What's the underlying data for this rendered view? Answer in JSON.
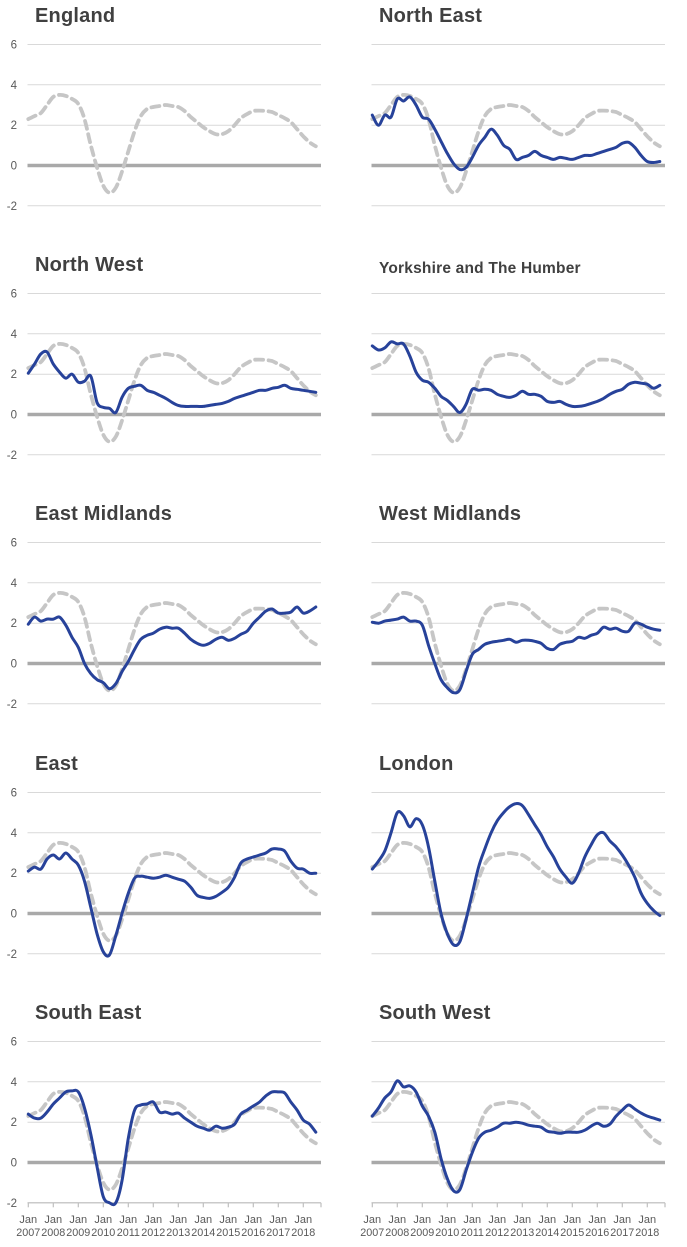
{
  "colors": {
    "region_line": "#27429a",
    "reference_line": "#c6c6c6",
    "zero_line": "#a9a9a9",
    "gridline": "#d9d9d9",
    "axis_line": "#bfbfbf",
    "title_text": "#404040",
    "tick_label": "#595959",
    "background": "#ffffff"
  },
  "chart_data": {
    "type": "line",
    "title": "",
    "xlabel": "",
    "ylabel": "",
    "ylim": [
      -2,
      6
    ],
    "y_ticks": [
      6,
      4,
      2,
      0,
      -2
    ],
    "x_tick_month_label": "Jan",
    "x_tick_years": [
      "2007",
      "2008",
      "2009",
      "2010",
      "2011",
      "2012",
      "2013",
      "2014",
      "2015",
      "2016",
      "2017",
      "2018"
    ],
    "grid": true,
    "legend_position": "none",
    "series_styles": {
      "region": "solid blue line",
      "england_reference": "dashed grey line shown on every panel"
    },
    "x": [
      2007,
      2007.25,
      2007.5,
      2007.75,
      2008,
      2008.25,
      2008.5,
      2008.75,
      2009,
      2009.25,
      2009.5,
      2009.75,
      2010,
      2010.25,
      2010.5,
      2010.75,
      2011,
      2011.25,
      2011.5,
      2011.75,
      2012,
      2012.25,
      2012.5,
      2012.75,
      2013,
      2013.25,
      2013.5,
      2013.75,
      2014,
      2014.25,
      2014.5,
      2014.75,
      2015,
      2015.25,
      2015.5,
      2015.75,
      2016,
      2016.25,
      2016.5,
      2016.75,
      2017,
      2017.25,
      2017.5,
      2017.75,
      2018,
      2018.25,
      2018.5
    ],
    "england_reference": [
      2.3,
      2.45,
      2.6,
      3.0,
      3.4,
      3.5,
      3.45,
      3.3,
      3.05,
      2.3,
      1.0,
      -0.1,
      -1.0,
      -1.35,
      -1.1,
      -0.3,
      0.7,
      1.7,
      2.45,
      2.8,
      2.9,
      2.95,
      3.0,
      2.95,
      2.9,
      2.7,
      2.4,
      2.15,
      1.9,
      1.7,
      1.55,
      1.55,
      1.7,
      2.0,
      2.35,
      2.55,
      2.7,
      2.72,
      2.7,
      2.65,
      2.5,
      2.35,
      2.15,
      1.8,
      1.45,
      1.15,
      0.95
    ],
    "charts": [
      {
        "title": "England",
        "small_title": false,
        "y_axis_labels": true,
        "x_axis_labels": false,
        "region_values": null
      },
      {
        "title": "North East",
        "small_title": false,
        "y_axis_labels": false,
        "x_axis_labels": false,
        "region_values": [
          2.5,
          2.0,
          2.5,
          2.4,
          3.3,
          3.2,
          3.4,
          3.0,
          2.4,
          2.3,
          1.8,
          1.2,
          0.6,
          0.1,
          -0.2,
          -0.1,
          0.4,
          1.0,
          1.4,
          1.8,
          1.5,
          1.0,
          0.8,
          0.3,
          0.4,
          0.5,
          0.7,
          0.5,
          0.4,
          0.3,
          0.4,
          0.35,
          0.3,
          0.4,
          0.5,
          0.5,
          0.6,
          0.7,
          0.8,
          0.9,
          1.1,
          1.15,
          0.9,
          0.5,
          0.2,
          0.15,
          0.2
        ]
      },
      {
        "title": "North West",
        "small_title": false,
        "y_axis_labels": true,
        "x_axis_labels": false,
        "region_values": [
          2.05,
          2.5,
          3.0,
          3.1,
          2.5,
          2.1,
          1.8,
          2.0,
          1.6,
          1.65,
          1.9,
          0.6,
          0.35,
          0.3,
          0.1,
          0.85,
          1.3,
          1.4,
          1.45,
          1.2,
          1.1,
          0.95,
          0.8,
          0.6,
          0.45,
          0.4,
          0.4,
          0.4,
          0.4,
          0.45,
          0.5,
          0.55,
          0.65,
          0.8,
          0.9,
          1.0,
          1.1,
          1.2,
          1.2,
          1.3,
          1.35,
          1.45,
          1.3,
          1.25,
          1.2,
          1.15,
          1.1
        ]
      },
      {
        "title": "Yorkshire and The Humber",
        "small_title": true,
        "y_axis_labels": false,
        "x_axis_labels": false,
        "region_values": [
          3.4,
          3.2,
          3.3,
          3.6,
          3.5,
          3.5,
          2.9,
          2.1,
          1.7,
          1.6,
          1.3,
          0.9,
          0.7,
          0.4,
          0.1,
          0.5,
          1.25,
          1.2,
          1.25,
          1.2,
          1.0,
          0.9,
          0.85,
          0.95,
          1.15,
          1.0,
          1.0,
          0.9,
          0.65,
          0.6,
          0.65,
          0.5,
          0.4,
          0.4,
          0.45,
          0.55,
          0.65,
          0.8,
          1.0,
          1.15,
          1.25,
          1.5,
          1.6,
          1.55,
          1.5,
          1.3,
          1.45
        ]
      },
      {
        "title": "East Midlands",
        "small_title": false,
        "y_axis_labels": true,
        "x_axis_labels": false,
        "region_values": [
          1.95,
          2.3,
          2.1,
          2.2,
          2.2,
          2.3,
          1.9,
          1.3,
          0.8,
          0.0,
          -0.5,
          -0.8,
          -0.95,
          -1.25,
          -1.0,
          -0.4,
          0.1,
          0.7,
          1.2,
          1.4,
          1.5,
          1.7,
          1.8,
          1.75,
          1.75,
          1.5,
          1.2,
          1.0,
          0.9,
          1.0,
          1.2,
          1.3,
          1.15,
          1.25,
          1.45,
          1.6,
          2.0,
          2.3,
          2.6,
          2.7,
          2.5,
          2.5,
          2.55,
          2.8,
          2.5,
          2.6,
          2.8
        ]
      },
      {
        "title": "West Midlands",
        "small_title": false,
        "y_axis_labels": false,
        "x_axis_labels": false,
        "region_values": [
          2.05,
          2.0,
          2.1,
          2.15,
          2.2,
          2.3,
          2.1,
          2.1,
          1.9,
          0.9,
          0.0,
          -0.8,
          -1.2,
          -1.45,
          -1.3,
          -0.4,
          0.45,
          0.7,
          0.95,
          1.05,
          1.1,
          1.15,
          1.2,
          1.05,
          1.15,
          1.15,
          1.1,
          1.0,
          0.75,
          0.7,
          0.95,
          1.05,
          1.1,
          1.3,
          1.25,
          1.4,
          1.5,
          1.8,
          1.7,
          1.75,
          1.6,
          1.6,
          2.0,
          1.95,
          1.8,
          1.7,
          1.65
        ]
      },
      {
        "title": "East",
        "small_title": false,
        "y_axis_labels": true,
        "x_axis_labels": false,
        "region_values": [
          2.1,
          2.3,
          2.2,
          2.7,
          2.9,
          2.7,
          3.0,
          2.7,
          2.4,
          1.6,
          0.3,
          -1.0,
          -1.9,
          -2.05,
          -1.1,
          0.0,
          1.0,
          1.75,
          1.85,
          1.8,
          1.75,
          1.8,
          1.9,
          1.8,
          1.7,
          1.6,
          1.3,
          0.9,
          0.8,
          0.75,
          0.85,
          1.05,
          1.3,
          1.8,
          2.5,
          2.7,
          2.8,
          2.9,
          3.0,
          3.2,
          3.2,
          3.1,
          2.6,
          2.25,
          2.2,
          2.0,
          2.0
        ]
      },
      {
        "title": "London",
        "small_title": false,
        "y_axis_labels": false,
        "x_axis_labels": false,
        "region_values": [
          2.2,
          2.6,
          3.1,
          4.0,
          5.0,
          4.85,
          4.3,
          4.7,
          4.4,
          3.3,
          1.6,
          0.0,
          -1.0,
          -1.55,
          -1.4,
          -0.3,
          1.0,
          2.3,
          3.2,
          4.0,
          4.6,
          5.0,
          5.3,
          5.45,
          5.35,
          4.9,
          4.4,
          3.9,
          3.3,
          2.8,
          2.2,
          1.8,
          1.5,
          2.0,
          2.8,
          3.4,
          3.9,
          4.0,
          3.6,
          3.3,
          2.9,
          2.4,
          1.8,
          1.0,
          0.5,
          0.15,
          -0.1
        ]
      },
      {
        "title": "South East",
        "small_title": false,
        "y_axis_labels": true,
        "x_axis_labels": true,
        "region_values": [
          2.4,
          2.2,
          2.2,
          2.5,
          2.9,
          3.2,
          3.5,
          3.55,
          3.5,
          2.7,
          1.4,
          -0.2,
          -1.7,
          -2.0,
          -2.0,
          -0.9,
          1.2,
          2.6,
          2.85,
          2.9,
          3.0,
          2.5,
          2.5,
          2.4,
          2.45,
          2.2,
          2.0,
          1.8,
          1.7,
          1.6,
          1.8,
          1.7,
          1.75,
          1.9,
          2.4,
          2.6,
          2.8,
          3.0,
          3.3,
          3.5,
          3.5,
          3.45,
          3.0,
          2.6,
          2.1,
          1.9,
          1.5
        ]
      },
      {
        "title": "South West",
        "small_title": false,
        "y_axis_labels": false,
        "x_axis_labels": true,
        "region_values": [
          2.3,
          2.7,
          3.2,
          3.5,
          4.05,
          3.75,
          3.8,
          3.5,
          2.8,
          2.3,
          1.5,
          0.2,
          -0.8,
          -1.4,
          -1.35,
          -0.4,
          0.5,
          1.2,
          1.5,
          1.6,
          1.75,
          1.95,
          1.95,
          2.0,
          1.95,
          1.85,
          1.8,
          1.75,
          1.55,
          1.5,
          1.45,
          1.5,
          1.5,
          1.5,
          1.6,
          1.8,
          1.95,
          1.8,
          1.9,
          2.3,
          2.6,
          2.85,
          2.65,
          2.45,
          2.3,
          2.2,
          2.1
        ]
      }
    ]
  }
}
